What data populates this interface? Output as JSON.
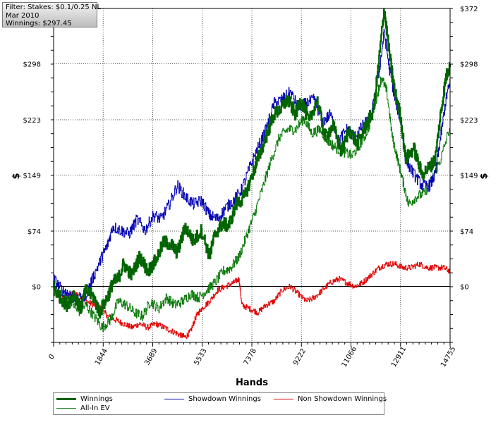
{
  "info": {
    "filter": "Filter: Stakes: $0.1/0.25 NL",
    "date": "Mar 2010",
    "winnings": "Winnings: $297.45"
  },
  "legend": {
    "winnings": "Winnings",
    "allin_ev": "All-In EV",
    "showdown": "Showdown Winnings",
    "non_showdown": "Non Showdown Winnings"
  },
  "colors": {
    "winnings": "#006400",
    "allin_ev": "#0b7a0b",
    "showdown": "#0000b4",
    "non_showdown": "#e00000",
    "zero_line": "#000000",
    "grid": "#555555"
  },
  "chart_data": {
    "type": "line",
    "xlabel": "Hands",
    "ylabel": "$",
    "xlim": [
      0,
      14755
    ],
    "ylim": [
      -75,
      372
    ],
    "x_ticks": [
      0,
      1844,
      3689,
      5533,
      7378,
      9222,
      11066,
      12911,
      14755
    ],
    "y_ticks": [
      0,
      74,
      149,
      223,
      298,
      372
    ],
    "y_tick_labels": [
      "$0",
      "$74",
      "$149",
      "$223",
      "$298",
      "$372"
    ],
    "grid": true,
    "legend_position": "bottom",
    "series": [
      {
        "name": "Winnings",
        "points": [
          [
            0,
            0
          ],
          [
            250,
            -15
          ],
          [
            500,
            -25
          ],
          [
            750,
            -10
          ],
          [
            1000,
            -30
          ],
          [
            1200,
            -5
          ],
          [
            1500,
            -15
          ],
          [
            1700,
            -35
          ],
          [
            2000,
            -15
          ],
          [
            2200,
            5
          ],
          [
            2400,
            10
          ],
          [
            2600,
            30
          ],
          [
            2900,
            15
          ],
          [
            3200,
            40
          ],
          [
            3500,
            20
          ],
          [
            3800,
            35
          ],
          [
            4100,
            60
          ],
          [
            4400,
            55
          ],
          [
            4600,
            45
          ],
          [
            4900,
            80
          ],
          [
            5200,
            60
          ],
          [
            5500,
            75
          ],
          [
            5800,
            40
          ],
          [
            6000,
            70
          ],
          [
            6300,
            85
          ],
          [
            6500,
            80
          ],
          [
            6800,
            110
          ],
          [
            7100,
            120
          ],
          [
            7400,
            150
          ],
          [
            7600,
            170
          ],
          [
            7900,
            200
          ],
          [
            8200,
            230
          ],
          [
            8500,
            240
          ],
          [
            8700,
            250
          ],
          [
            9000,
            230
          ],
          [
            9200,
            250
          ],
          [
            9500,
            220
          ],
          [
            9800,
            250
          ],
          [
            10100,
            200
          ],
          [
            10400,
            215
          ],
          [
            10700,
            180
          ],
          [
            11000,
            210
          ],
          [
            11300,
            190
          ],
          [
            11600,
            215
          ],
          [
            11900,
            235
          ],
          [
            12100,
            300
          ],
          [
            12300,
            372
          ],
          [
            12500,
            310
          ],
          [
            12700,
            260
          ],
          [
            12900,
            230
          ],
          [
            13100,
            170
          ],
          [
            13400,
            185
          ],
          [
            13700,
            150
          ],
          [
            14000,
            160
          ],
          [
            14200,
            170
          ],
          [
            14400,
            230
          ],
          [
            14600,
            280
          ],
          [
            14755,
            297
          ]
        ]
      },
      {
        "name": "All-In EV",
        "points": [
          [
            0,
            -5
          ],
          [
            300,
            -20
          ],
          [
            600,
            -15
          ],
          [
            900,
            -35
          ],
          [
            1200,
            -25
          ],
          [
            1500,
            -40
          ],
          [
            1800,
            -55
          ],
          [
            2100,
            -45
          ],
          [
            2400,
            -20
          ],
          [
            2700,
            -25
          ],
          [
            3000,
            -35
          ],
          [
            3300,
            -40
          ],
          [
            3600,
            -20
          ],
          [
            3900,
            -30
          ],
          [
            4200,
            -15
          ],
          [
            4500,
            -25
          ],
          [
            4800,
            -20
          ],
          [
            5100,
            -10
          ],
          [
            5400,
            -15
          ],
          [
            5700,
            -5
          ],
          [
            6000,
            5
          ],
          [
            6300,
            20
          ],
          [
            6600,
            25
          ],
          [
            6900,
            40
          ],
          [
            7200,
            70
          ],
          [
            7500,
            100
          ],
          [
            7800,
            135
          ],
          [
            8100,
            170
          ],
          [
            8400,
            200
          ],
          [
            8700,
            210
          ],
          [
            9000,
            210
          ],
          [
            9300,
            225
          ],
          [
            9600,
            205
          ],
          [
            9900,
            210
          ],
          [
            10200,
            195
          ],
          [
            10500,
            185
          ],
          [
            10800,
            180
          ],
          [
            11100,
            175
          ],
          [
            11400,
            190
          ],
          [
            11700,
            210
          ],
          [
            12000,
            250
          ],
          [
            12200,
            280
          ],
          [
            12400,
            260
          ],
          [
            12600,
            200
          ],
          [
            12800,
            170
          ],
          [
            13000,
            140
          ],
          [
            13200,
            110
          ],
          [
            13500,
            120
          ],
          [
            13800,
            125
          ],
          [
            14100,
            145
          ],
          [
            14400,
            170
          ],
          [
            14755,
            215
          ]
        ]
      },
      {
        "name": "Showdown Winnings",
        "points": [
          [
            0,
            10
          ],
          [
            300,
            -5
          ],
          [
            600,
            -10
          ],
          [
            900,
            -20
          ],
          [
            1200,
            -10
          ],
          [
            1500,
            15
          ],
          [
            1800,
            40
          ],
          [
            2000,
            55
          ],
          [
            2200,
            80
          ],
          [
            2500,
            75
          ],
          [
            2800,
            70
          ],
          [
            3100,
            90
          ],
          [
            3400,
            75
          ],
          [
            3700,
            95
          ],
          [
            4000,
            90
          ],
          [
            4300,
            110
          ],
          [
            4600,
            135
          ],
          [
            4900,
            120
          ],
          [
            5200,
            110
          ],
          [
            5500,
            115
          ],
          [
            5800,
            95
          ],
          [
            6100,
            90
          ],
          [
            6400,
            105
          ],
          [
            6700,
            115
          ],
          [
            7000,
            130
          ],
          [
            7300,
            160
          ],
          [
            7600,
            185
          ],
          [
            7900,
            210
          ],
          [
            8200,
            245
          ],
          [
            8500,
            250
          ],
          [
            8800,
            260
          ],
          [
            9100,
            240
          ],
          [
            9400,
            245
          ],
          [
            9700,
            250
          ],
          [
            10000,
            220
          ],
          [
            10300,
            230
          ],
          [
            10600,
            195
          ],
          [
            10900,
            210
          ],
          [
            11200,
            200
          ],
          [
            11500,
            215
          ],
          [
            11800,
            225
          ],
          [
            12100,
            285
          ],
          [
            12300,
            340
          ],
          [
            12500,
            290
          ],
          [
            12700,
            250
          ],
          [
            12900,
            225
          ],
          [
            13100,
            170
          ],
          [
            13400,
            150
          ],
          [
            13700,
            135
          ],
          [
            14000,
            135
          ],
          [
            14200,
            150
          ],
          [
            14400,
            200
          ],
          [
            14600,
            250
          ],
          [
            14755,
            275
          ]
        ]
      },
      {
        "name": "Non Showdown Winnings",
        "points": [
          [
            0,
            -10
          ],
          [
            300,
            -15
          ],
          [
            600,
            -10
          ],
          [
            900,
            -10
          ],
          [
            1200,
            -20
          ],
          [
            1500,
            -25
          ],
          [
            1800,
            -30
          ],
          [
            2000,
            -40
          ],
          [
            2300,
            -45
          ],
          [
            2600,
            -50
          ],
          [
            2900,
            -55
          ],
          [
            3200,
            -50
          ],
          [
            3500,
            -55
          ],
          [
            3800,
            -50
          ],
          [
            4100,
            -55
          ],
          [
            4400,
            -60
          ],
          [
            4700,
            -65
          ],
          [
            4900,
            -68
          ],
          [
            5100,
            -60
          ],
          [
            5300,
            -40
          ],
          [
            5500,
            -30
          ],
          [
            5800,
            -20
          ],
          [
            6100,
            -5
          ],
          [
            6400,
            0
          ],
          [
            6700,
            5
          ],
          [
            6900,
            10
          ],
          [
            7000,
            -25
          ],
          [
            7300,
            -30
          ],
          [
            7600,
            -35
          ],
          [
            7900,
            -25
          ],
          [
            8200,
            -20
          ],
          [
            8500,
            -5
          ],
          [
            8800,
            0
          ],
          [
            9100,
            -10
          ],
          [
            9400,
            -20
          ],
          [
            9700,
            -15
          ],
          [
            10000,
            -5
          ],
          [
            10300,
            5
          ],
          [
            10600,
            10
          ],
          [
            10900,
            5
          ],
          [
            11200,
            0
          ],
          [
            11500,
            5
          ],
          [
            11800,
            15
          ],
          [
            12100,
            25
          ],
          [
            12400,
            30
          ],
          [
            12700,
            30
          ],
          [
            13000,
            25
          ],
          [
            13300,
            25
          ],
          [
            13600,
            30
          ],
          [
            13900,
            25
          ],
          [
            14200,
            25
          ],
          [
            14500,
            25
          ],
          [
            14755,
            20
          ]
        ]
      }
    ]
  }
}
